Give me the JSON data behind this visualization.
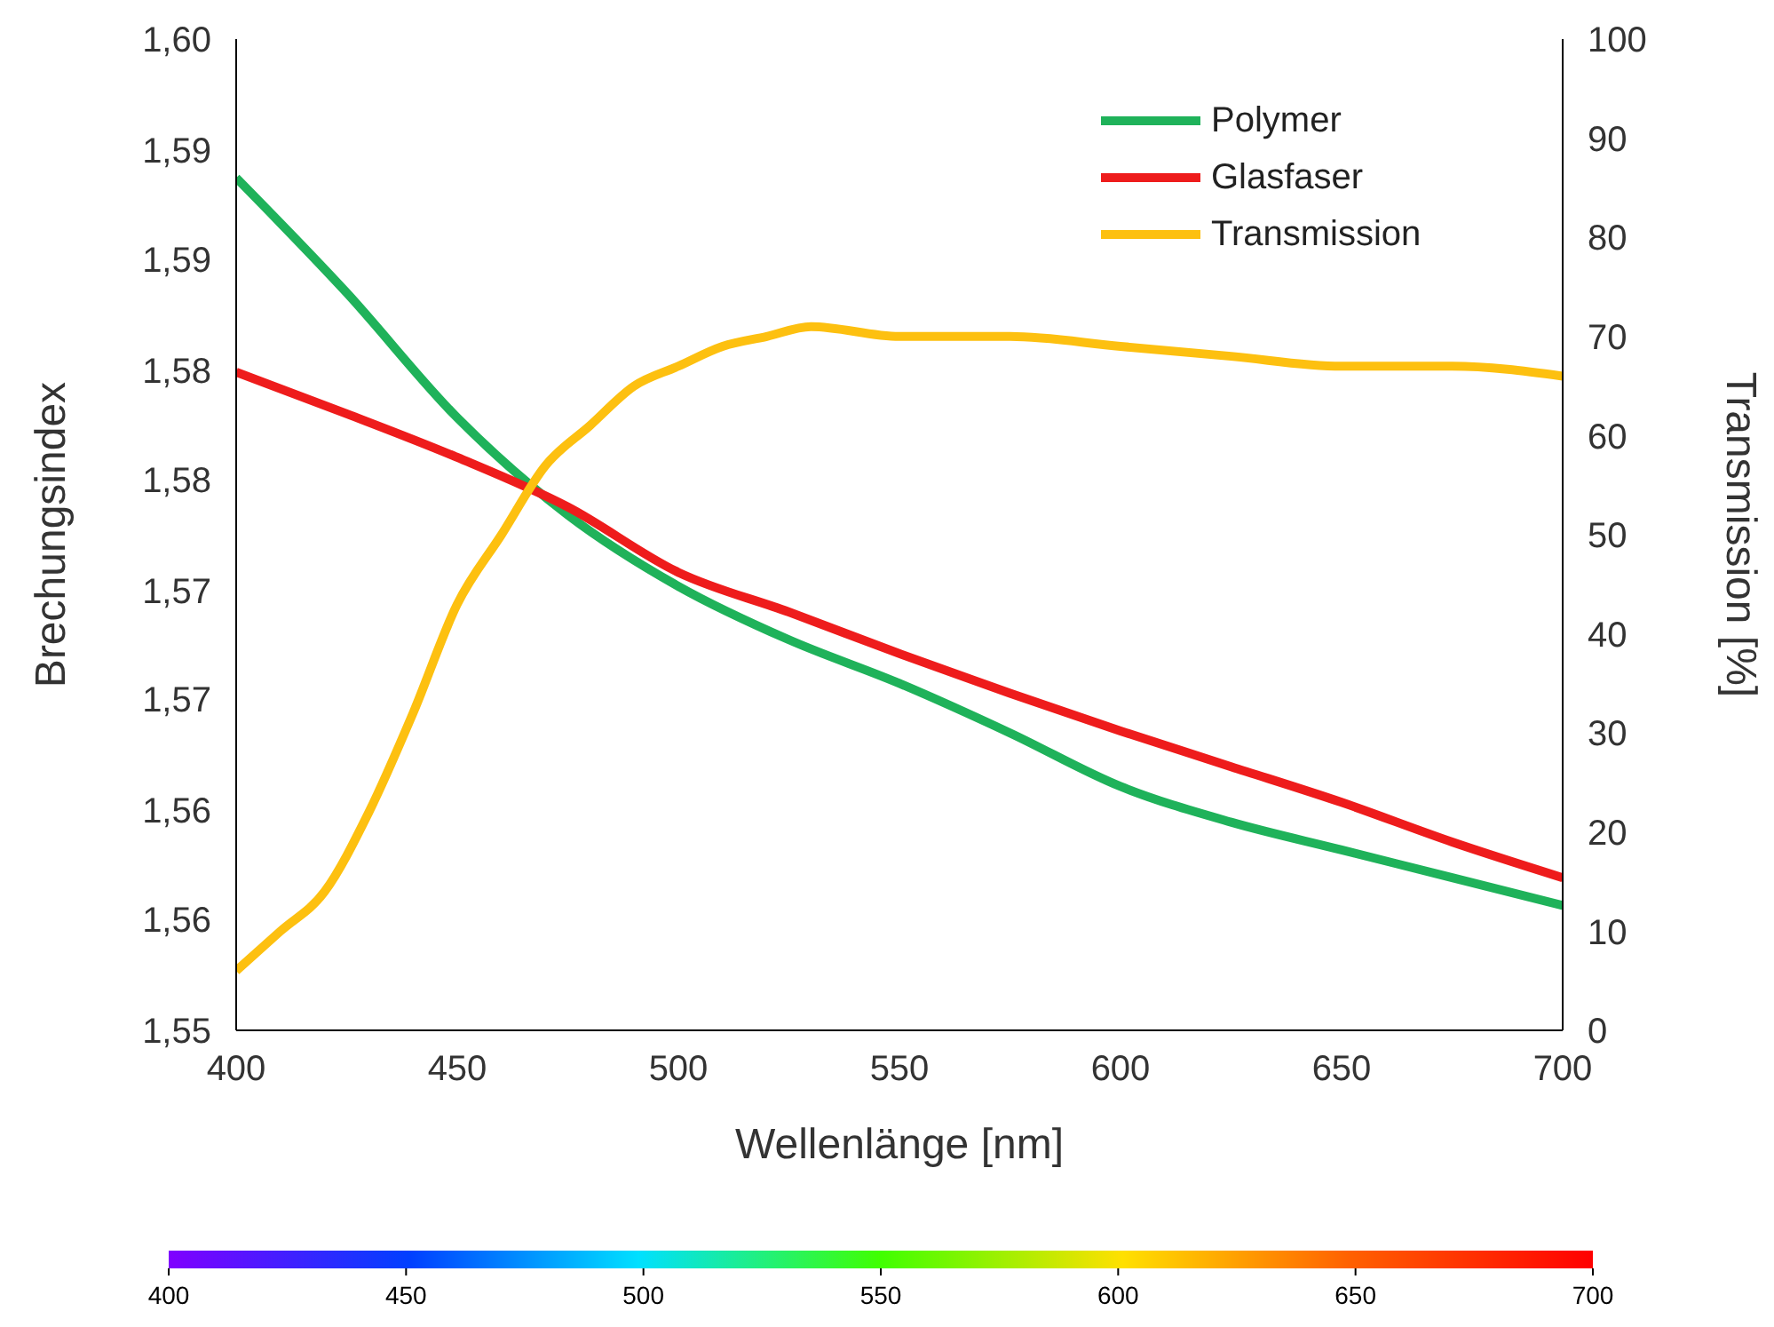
{
  "chart_data": {
    "type": "line",
    "xlabel": "Wellenlänge [nm]",
    "ylabel": "Brechungsindex",
    "y2label": "Transmission [%]",
    "xlim": [
      400,
      700
    ],
    "xticks": [
      400,
      450,
      500,
      550,
      600,
      650,
      700
    ],
    "ylim": [
      1.55,
      1.6
    ],
    "yticks": [
      {
        "value": 1.55,
        "label": "1,55"
      },
      {
        "value": 1.5556,
        "label": "1,56"
      },
      {
        "value": 1.5611,
        "label": "1,56"
      },
      {
        "value": 1.5667,
        "label": "1,57"
      },
      {
        "value": 1.5722,
        "label": "1,57"
      },
      {
        "value": 1.5778,
        "label": "1,58"
      },
      {
        "value": 1.5833,
        "label": "1,58"
      },
      {
        "value": 1.5889,
        "label": "1,59"
      },
      {
        "value": 1.5944,
        "label": "1,59"
      },
      {
        "value": 1.6,
        "label": "1,60"
      }
    ],
    "y2lim": [
      0,
      100
    ],
    "y2ticks": [
      0,
      10,
      20,
      30,
      40,
      50,
      60,
      70,
      80,
      90,
      100
    ],
    "clim": [
      400,
      700
    ],
    "cticks": [
      400,
      450,
      500,
      550,
      600,
      650,
      700
    ],
    "grid": false,
    "legend": "top right",
    "marker": "none",
    "line_style": "solid",
    "series": [
      {
        "name": "Polymer",
        "color": "#1fb25a",
        "x": [
          400,
          425,
          450,
          475,
          500,
          525,
          550,
          575,
          600,
          625,
          650,
          675,
          700
        ],
        "values": [
          1.593,
          1.5872,
          1.5809,
          1.576,
          1.5724,
          1.5697,
          1.5675,
          1.565,
          1.5623,
          1.5605,
          1.5591,
          1.5577,
          1.5563
        ]
      },
      {
        "name": "Glasfaser",
        "color": "#ee1c1c",
        "x": [
          400,
          425,
          450,
          475,
          500,
          525,
          550,
          575,
          600,
          625,
          650,
          675,
          700
        ],
        "values": [
          1.5832,
          1.5811,
          1.5789,
          1.5764,
          1.5731,
          1.5711,
          1.569,
          1.567,
          1.5651,
          1.5633,
          1.5615,
          1.5595,
          1.5577
        ]
      },
      {
        "name": "Transmission",
        "color": "#fdc010",
        "axis": "y2",
        "x": [
          400,
          410,
          420,
          430,
          440,
          450,
          460,
          470,
          480,
          490,
          500,
          510,
          520,
          530,
          550,
          575,
          600,
          625,
          650,
          675,
          700
        ],
        "values": [
          6,
          10,
          14,
          22,
          32,
          43,
          50,
          57,
          61,
          65,
          67,
          69,
          70,
          71,
          70,
          70,
          69,
          68,
          67,
          67,
          66
        ]
      }
    ]
  }
}
